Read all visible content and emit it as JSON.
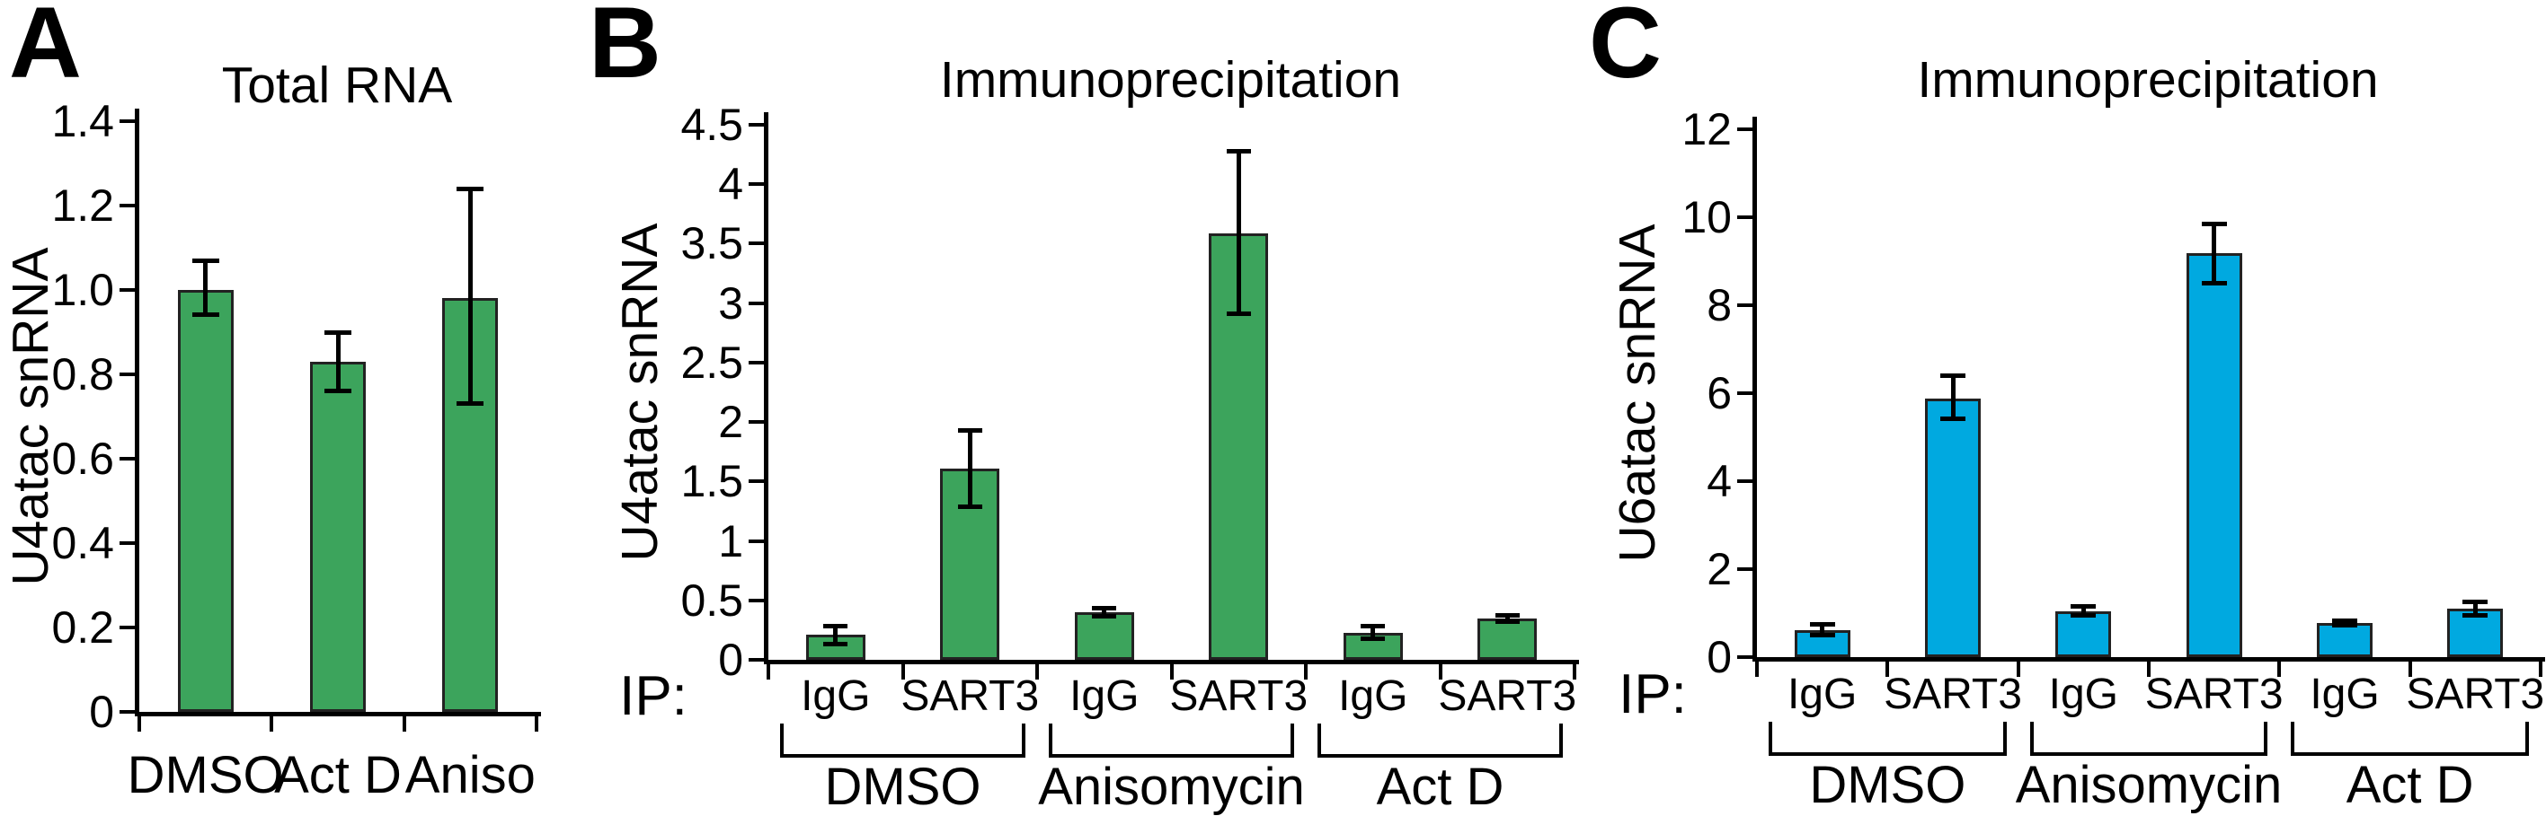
{
  "figure": {
    "background_color": "#ffffff",
    "text_color": "#000000",
    "panel_letters": [
      "A",
      "B",
      "C"
    ]
  },
  "chart_data": [
    {
      "type": "bar",
      "panel": "A",
      "title": "Total RNA",
      "ylabel": "U4atac snRNA",
      "xlabel": "",
      "ylim": [
        0,
        1.4
      ],
      "grid": false,
      "legend": "none",
      "y_tick_values": [
        1.4,
        1.2,
        1.0,
        0.8,
        0.6,
        0.4,
        0.2,
        0
      ],
      "y_tick_labels": [
        "1.4",
        "1.2",
        "1.0",
        "0.8",
        "0.6",
        "0.4",
        "0.2",
        "0"
      ],
      "categories": [
        "DMSO",
        "Act D",
        "Aniso"
      ],
      "values": [
        1.0,
        0.83,
        0.98
      ],
      "errors_low": [
        0.94,
        0.76,
        0.73
      ],
      "errors_high": [
        1.07,
        0.9,
        1.24
      ],
      "bar_color": "#3CA45C",
      "bar_border_color": "#222222",
      "error_color": "#000000"
    },
    {
      "type": "bar",
      "panel": "B",
      "title": "Immunoprecipitation",
      "ylabel": "U4atac snRNA",
      "xlabel": "",
      "ylim": [
        0,
        4.5
      ],
      "grid": false,
      "legend": "none",
      "ip_label": "IP:",
      "y_tick_values": [
        4.5,
        4,
        3.5,
        3,
        2.5,
        2,
        1.5,
        1,
        0.5,
        0
      ],
      "y_tick_labels": [
        "4.5",
        "4",
        "3.5",
        "3",
        "2.5",
        "2",
        "1.5",
        "1",
        "0.5",
        "0"
      ],
      "categories": [
        "IgG",
        "SART3",
        "IgG",
        "SART3",
        "IgG",
        "SART3"
      ],
      "groups": [
        "DMSO",
        "Anisomycin",
        "Act D"
      ],
      "values": [
        0.21,
        1.61,
        0.4,
        3.59,
        0.23,
        0.35
      ],
      "errors_low": [
        0.13,
        1.28,
        0.36,
        2.91,
        0.17,
        0.32
      ],
      "errors_high": [
        0.29,
        1.93,
        0.44,
        4.28,
        0.29,
        0.38
      ],
      "bar_color": "#3CA45C",
      "bar_border_color": "#222222",
      "error_color": "#000000"
    },
    {
      "type": "bar",
      "panel": "C",
      "title": "Immunoprecipitation",
      "ylabel": "U6atac snRNA",
      "xlabel": "",
      "ylim": [
        0,
        12
      ],
      "grid": false,
      "legend": "none",
      "ip_label": "IP:",
      "y_tick_values": [
        12,
        10,
        8,
        6,
        4,
        2,
        0
      ],
      "y_tick_labels": [
        "12",
        "10",
        "8",
        "6",
        "4",
        "2",
        "0"
      ],
      "categories": [
        "IgG",
        "SART3",
        "IgG",
        "SART3",
        "IgG",
        "SART3"
      ],
      "groups": [
        "DMSO",
        "Anisomycin",
        "Act D"
      ],
      "values": [
        0.62,
        5.88,
        1.05,
        9.18,
        0.78,
        1.1
      ],
      "errors_low": [
        0.48,
        5.4,
        0.93,
        8.5,
        0.72,
        0.93
      ],
      "errors_high": [
        0.76,
        6.4,
        1.17,
        9.85,
        0.84,
        1.27
      ],
      "bar_color": "#00A9E0",
      "bar_border_color": "#222222",
      "error_color": "#000000"
    }
  ]
}
